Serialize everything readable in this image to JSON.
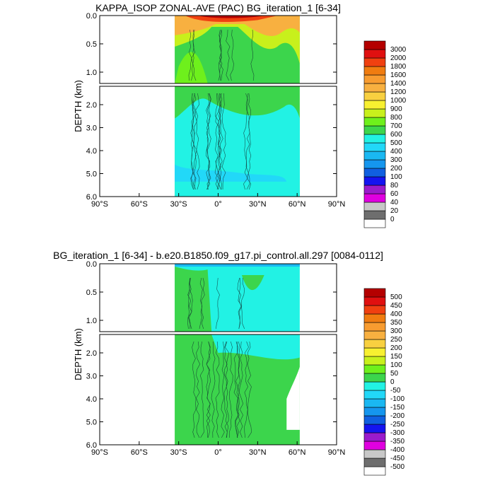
{
  "chart_data": [
    {
      "type": "contour",
      "title": "KAPPA_ISOP ZONAL-AVE (PAC) BG_iteration_1 [6-34]",
      "ylabel": "DEPTH (km)",
      "x_ticks": [
        "90°S",
        "60°S",
        "30°S",
        "0°",
        "30°N",
        "60°N",
        "90°N"
      ],
      "x_tick_values": [
        -90,
        -60,
        -30,
        0,
        30,
        60,
        90
      ],
      "xlim": [
        -90,
        90
      ],
      "upper_panel": {
        "ylim": [
          0.0,
          1.2
        ],
        "y_ticks": [
          "0.0",
          "0.5",
          "1.0"
        ],
        "y_tick_values": [
          0.0,
          0.5,
          1.0
        ]
      },
      "lower_panel": {
        "ylim": [
          1.2,
          6.0
        ],
        "y_ticks": [
          "2.0",
          "3.0",
          "4.0",
          "5.0",
          "6.0"
        ],
        "y_tick_values": [
          2.0,
          3.0,
          4.0,
          5.0,
          6.0
        ]
      },
      "data_extent": {
        "lat_min": -33,
        "lat_max": 62,
        "depth_max": 5.35
      },
      "colorbar": {
        "labels": [
          "0",
          "20",
          "40",
          "60",
          "80",
          "100",
          "200",
          "300",
          "400",
          "500",
          "600",
          "700",
          "800",
          "900",
          "1000",
          "1200",
          "1400",
          "1600",
          "1800",
          "2000",
          "3000"
        ],
        "colors": [
          "#ffffff",
          "#6e6e6e",
          "#c8c8c8",
          "#e000e0",
          "#9a1bcc",
          "#1414f0",
          "#1060e0",
          "#1596ee",
          "#1ab8f2",
          "#22d8f8",
          "#22f2e4",
          "#3cd54c",
          "#6ef01c",
          "#c8f01c",
          "#f8f030",
          "#f8d040",
          "#f8b040",
          "#f89c30",
          "#f07c10",
          "#f04010",
          "#e01010",
          "#b40000"
        ]
      },
      "regions": [
        {
          "name": "surface-core",
          "value_range": "2000-3000",
          "lat_range": [
            -35,
            60
          ],
          "depth_range": [
            0,
            0.15
          ]
        },
        {
          "name": "orange-band",
          "value_range": "1000-1400",
          "lat_range": [
            -35,
            62
          ],
          "depth_range": [
            0,
            0.35
          ]
        },
        {
          "name": "yellow-band",
          "value_range": "800-1000",
          "lat_range": [
            -33,
            62
          ],
          "depth_range": [
            0,
            0.55
          ]
        },
        {
          "name": "green-layer",
          "value_range": "600-800",
          "lat_range": [
            -33,
            62
          ],
          "depth_range": [
            0,
            2.2
          ]
        },
        {
          "name": "cyan-deep",
          "value_range": "500-600",
          "lat_range": [
            -33,
            60
          ],
          "depth_range": [
            2.0,
            5.0
          ]
        },
        {
          "name": "bottom-blue",
          "value_range": "300-500",
          "lat_range": [
            -33,
            52
          ],
          "depth_range": [
            4.8,
            5.35
          ]
        }
      ]
    },
    {
      "type": "contour",
      "title": "BG_iteration_1 [6-34] - b.e20.B1850.f09_g17.pi_control.all.297 [0084-0112]",
      "ylabel": "DEPTH (km)",
      "x_ticks": [
        "90°S",
        "60°S",
        "30°S",
        "0°",
        "30°N",
        "60°N",
        "90°N"
      ],
      "x_tick_values": [
        -90,
        -60,
        -30,
        0,
        30,
        60,
        90
      ],
      "xlim": [
        -90,
        90
      ],
      "upper_panel": {
        "ylim": [
          0.0,
          1.2
        ],
        "y_ticks": [
          "0.0",
          "0.5",
          "1.0"
        ],
        "y_tick_values": [
          0.0,
          0.5,
          1.0
        ]
      },
      "lower_panel": {
        "ylim": [
          1.2,
          6.0
        ],
        "y_ticks": [
          "2.0",
          "3.0",
          "4.0",
          "5.0",
          "6.0"
        ],
        "y_tick_values": [
          2.0,
          3.0,
          4.0,
          5.0,
          6.0
        ]
      },
      "data_extent": {
        "lat_min": -33,
        "lat_max": 62,
        "depth_max": 5.35
      },
      "colorbar": {
        "labels": [
          "-500",
          "-450",
          "-400",
          "-350",
          "-300",
          "-250",
          "-200",
          "-150",
          "-100",
          "-50",
          "0",
          "50",
          "100",
          "150",
          "200",
          "250",
          "300",
          "350",
          "400",
          "450",
          "500"
        ],
        "colors": [
          "#ffffff",
          "#6e6e6e",
          "#c8c8c8",
          "#e000e0",
          "#9a1bcc",
          "#1414f0",
          "#1060e0",
          "#1596ee",
          "#1ab8f2",
          "#22d8f8",
          "#22f2e4",
          "#3cd54c",
          "#6ef01c",
          "#c8f01c",
          "#f8f030",
          "#f8d040",
          "#f8b040",
          "#f89c30",
          "#f07c10",
          "#f04010",
          "#e01010",
          "#b40000"
        ]
      },
      "regions": [
        {
          "name": "cyan-field",
          "value_range": "-50-0",
          "lat_range": [
            -33,
            62
          ],
          "depth_range": [
            0,
            2.0
          ]
        },
        {
          "name": "green-west",
          "value_range": "0-50",
          "lat_range": [
            -33,
            -5
          ],
          "depth_range": [
            0,
            5.35
          ]
        },
        {
          "name": "green-deep",
          "value_range": "0-50",
          "lat_range": [
            -33,
            52
          ],
          "depth_range": [
            1.7,
            5.35
          ]
        },
        {
          "name": "surface-blue",
          "value_range": "-100--50",
          "lat_range": [
            -33,
            62
          ],
          "depth_range": [
            0,
            0.05
          ]
        }
      ]
    }
  ]
}
